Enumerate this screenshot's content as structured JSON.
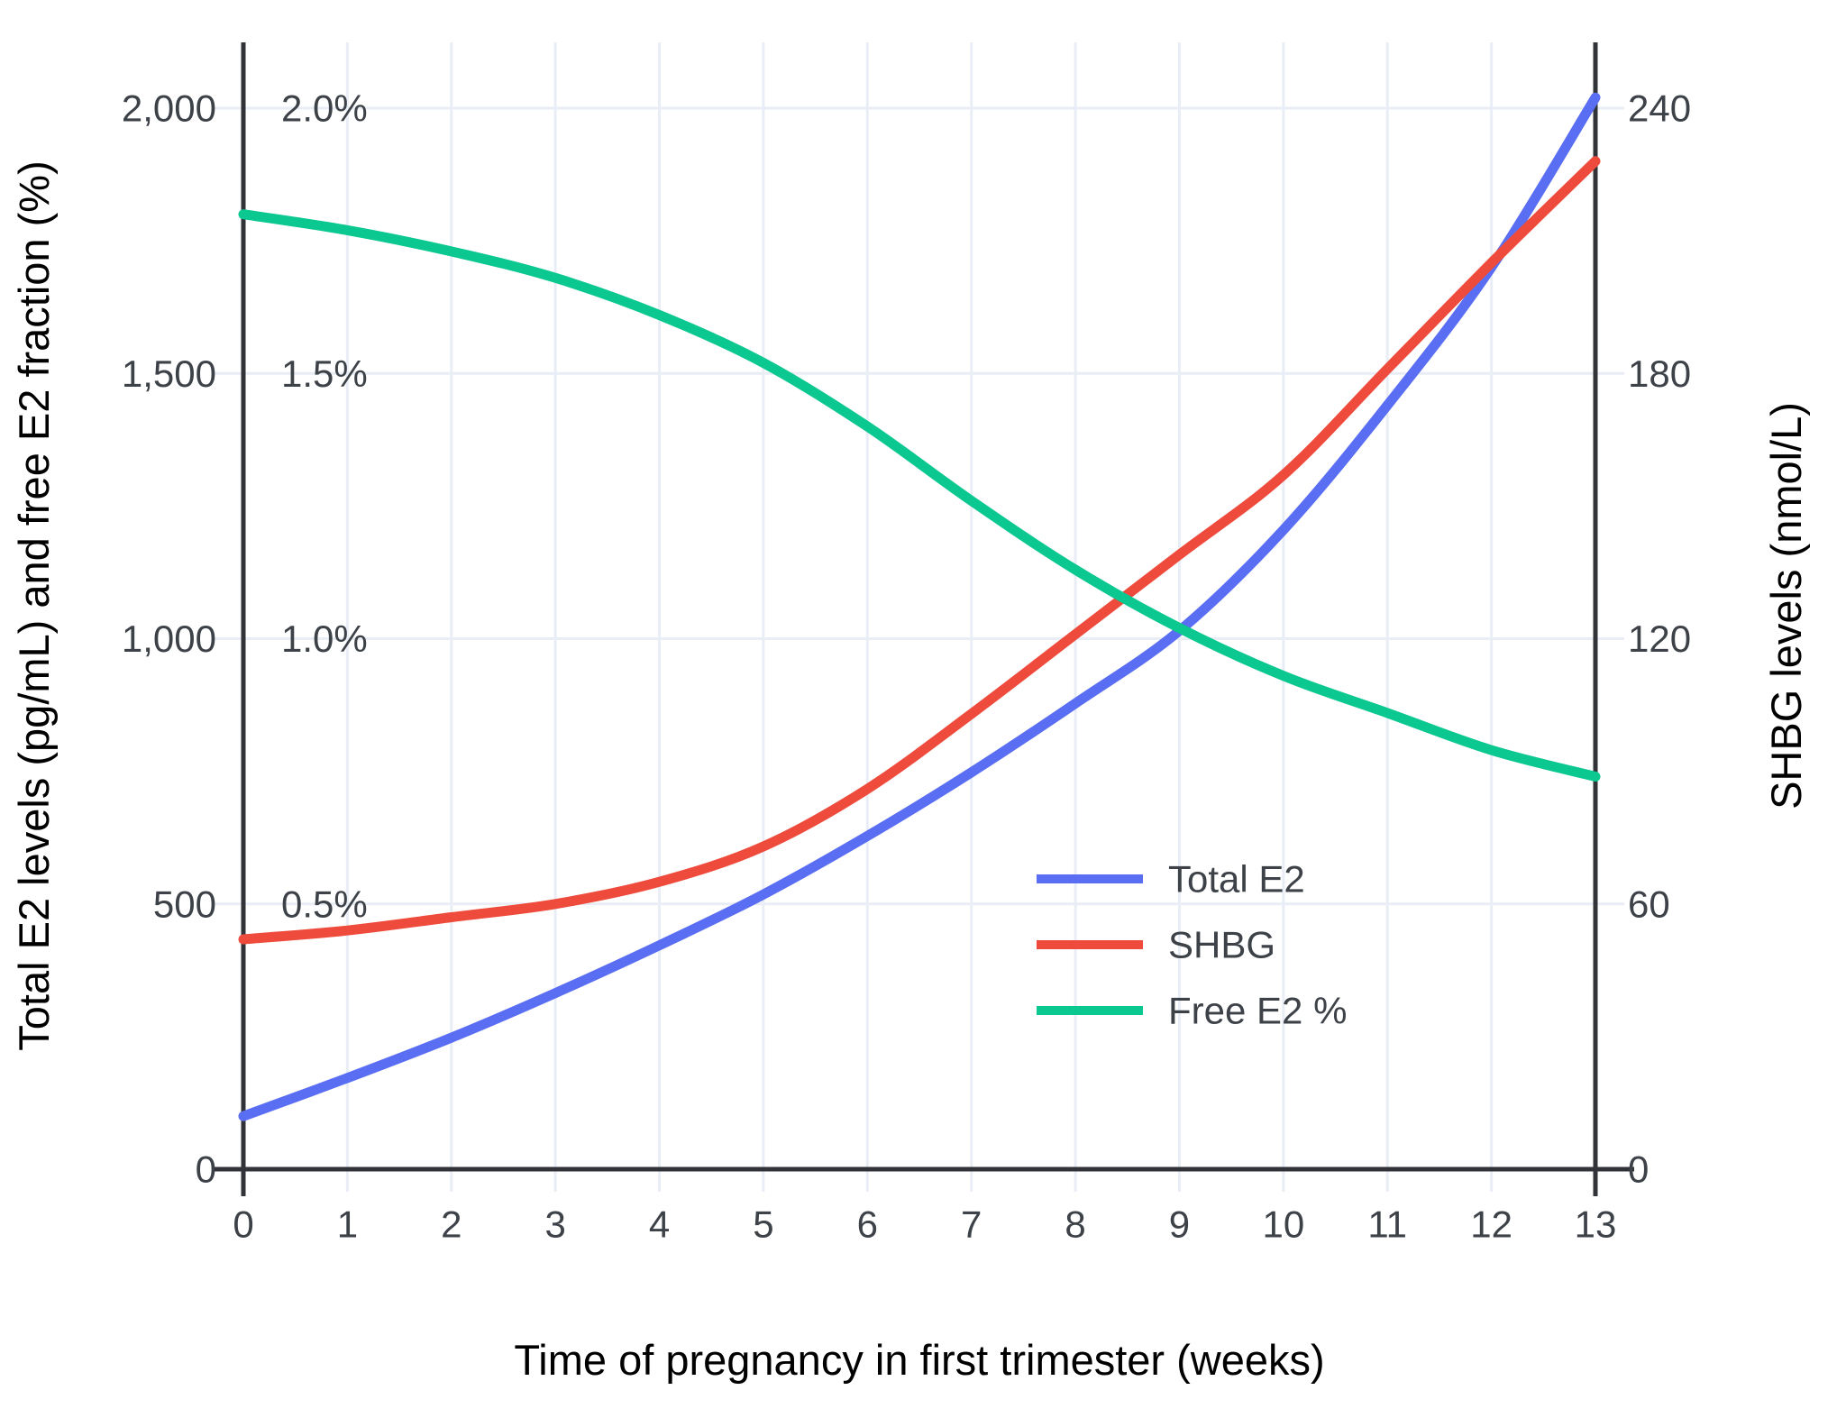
{
  "chart_data": {
    "type": "line",
    "title": "",
    "xlabel": "Time of pregnancy in first trimester (weeks)",
    "ylabel_left": "Total E2 levels (pg/mL) and free E2 fraction (%)",
    "ylabel_right": "SHBG levels (nmol/L)",
    "x": [
      0,
      1,
      2,
      3,
      4,
      5,
      6,
      7,
      8,
      9,
      10,
      11,
      12,
      13
    ],
    "x_tick_labels": [
      "0",
      "1",
      "2",
      "3",
      "4",
      "5",
      "6",
      "7",
      "8",
      "9",
      "10",
      "11",
      "12",
      "13"
    ],
    "left_axis": {
      "tick_labels": [
        "0",
        "500",
        "1,000",
        "1,500",
        "2,000"
      ],
      "tick_values": [
        0,
        500,
        1000,
        1500,
        2000
      ],
      "range": [
        0,
        2124
      ]
    },
    "left_percent_labels": {
      "labels": [
        "0.5%",
        "1.0%",
        "1.5%",
        "2.0%"
      ],
      "values_left_scale": [
        500,
        1000,
        1500,
        2000
      ]
    },
    "right_axis": {
      "tick_labels": [
        "0",
        "60",
        "120",
        "180",
        "240"
      ],
      "tick_values": [
        0,
        60,
        120,
        180,
        240
      ],
      "range": [
        0,
        255
      ]
    },
    "series": [
      {
        "name": "Total E2",
        "axis": "left",
        "unit": "pg/mL",
        "color": "#5a6ef3",
        "values": [
          100,
          172,
          248,
          332,
          422,
          518,
          628,
          748,
          878,
          1015,
          1205,
          1440,
          1700,
          2020
        ]
      },
      {
        "name": "SHBG",
        "axis": "right",
        "unit": "nmol/L",
        "color": "#ee4b3c",
        "values": [
          52,
          54,
          57,
          60,
          65,
          73,
          86,
          103,
          121,
          139,
          157,
          181,
          205,
          228
        ]
      },
      {
        "name": "Free E2 %",
        "axis": "left_percent",
        "unit": "%",
        "color": "#0bc790",
        "values": [
          1.8,
          1.77,
          1.73,
          1.68,
          1.61,
          1.52,
          1.4,
          1.26,
          1.13,
          1.02,
          0.93,
          0.86,
          0.79,
          0.74
        ]
      }
    ],
    "legend": {
      "entries": [
        "Total E2",
        "SHBG",
        "Free E2 %"
      ],
      "position": "inside-center-right"
    },
    "grid": true
  },
  "style": {
    "background": "#ffffff",
    "grid_color": "#e9eef6",
    "axis_color": "#313339",
    "text_color": "#3d4248"
  }
}
